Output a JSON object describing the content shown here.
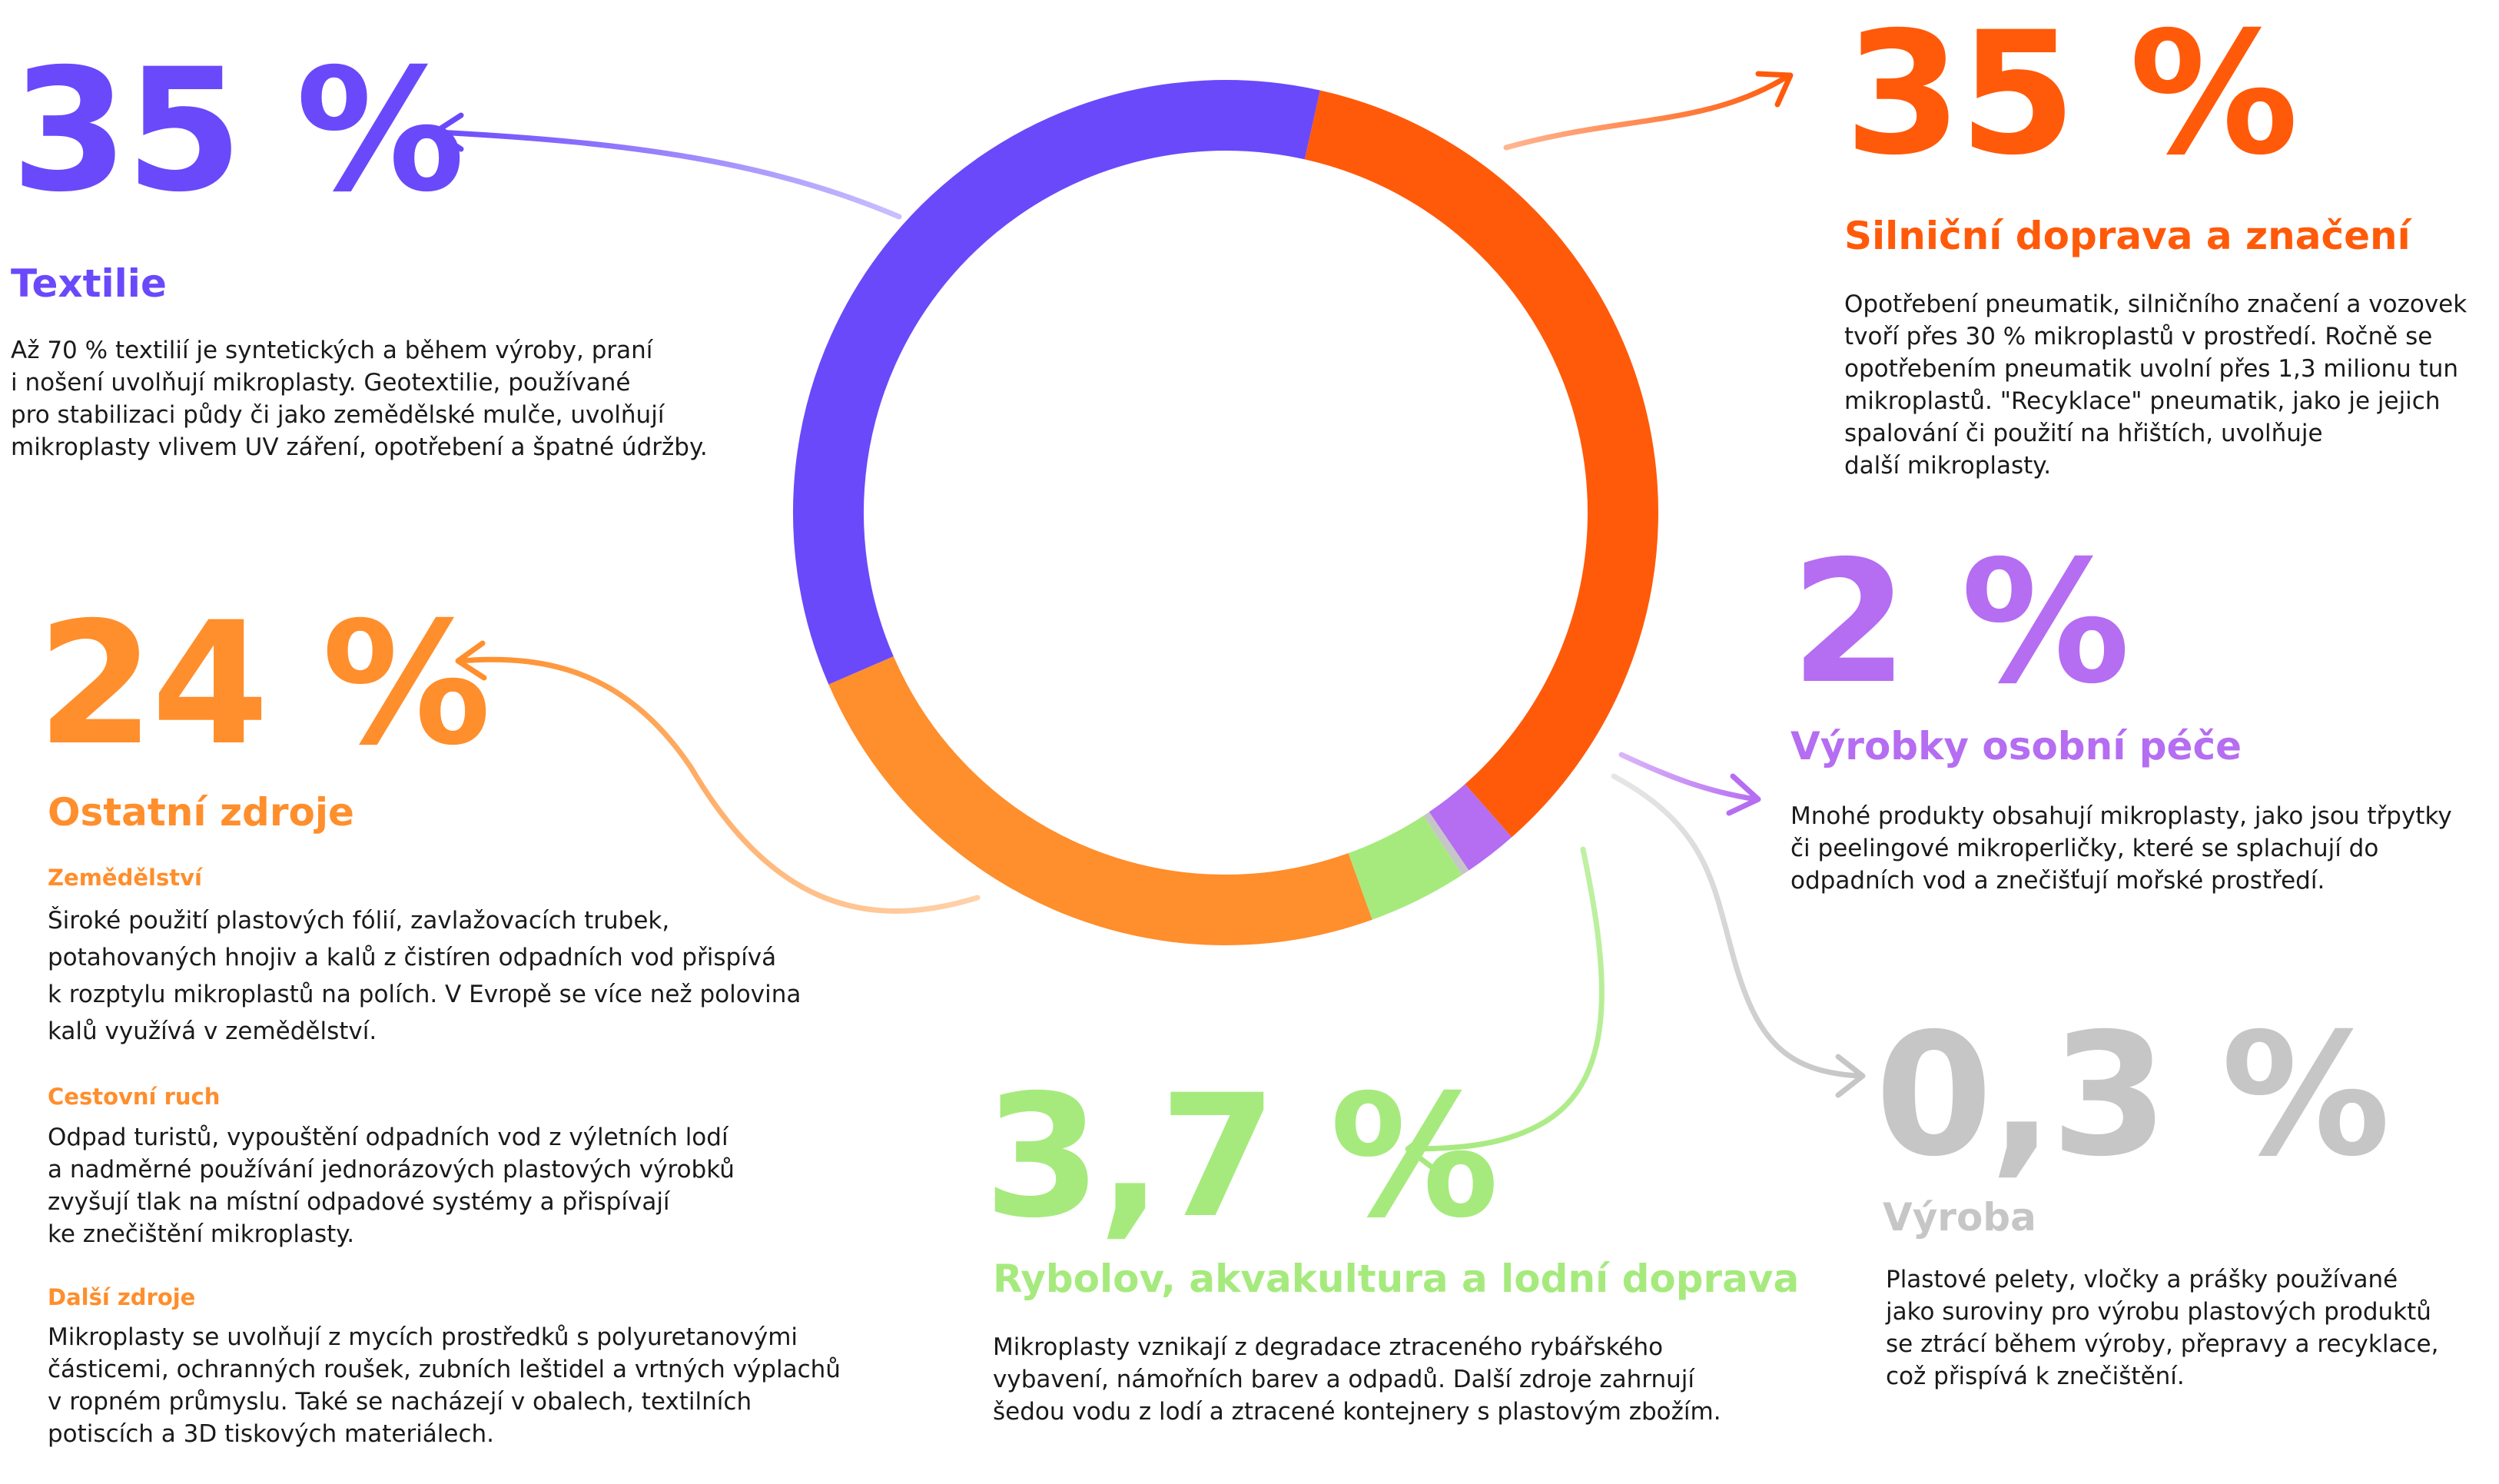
{
  "chart_data": {
    "type": "pie",
    "donut": true,
    "slices": [
      {
        "label": "Silniční doprava a značení",
        "value": 35,
        "display": "35 %",
        "color": "#ff5a0a"
      },
      {
        "label": "Výrobky osobní péče",
        "value": 2,
        "display": "2 %",
        "color": "#b56df2"
      },
      {
        "label": "Výroba",
        "value": 0.3,
        "display": "0,3 %",
        "color": "#c6c6c6"
      },
      {
        "label": "Rybolov, akvakultura a lodní doprava",
        "value": 3.7,
        "display": "3,7 %",
        "color": "#a6ea7e"
      },
      {
        "label": "Ostatní zdroje",
        "value": 24,
        "display": "24 %",
        "color": "#ff8e2c"
      },
      {
        "label": "Textilie",
        "value": 35,
        "display": "35 %",
        "color": "#6a49fb"
      }
    ]
  },
  "textilie": {
    "percent": "35 %",
    "title": "Textilie",
    "text": "Až 70 % textilií je syntetických a během výroby, praní\ni nošení uvolňují mikroplasty. Geotextilie, používané\npro stabilizaci půdy či jako zemědělské mulče, uvolňují\nmikroplasty vlivem UV záření, opotřebení a špatné údržby."
  },
  "silnicni": {
    "percent": "35 %",
    "title": "Silniční doprava a značení",
    "text": "Opotřebení pneumatik, silničního značení a vozovek\ntvoří přes 30 % mikroplastů v prostředí. Ročně se\nopotřebením pneumatik uvolní přes 1,3 milionu tun\nmikroplastů. \"Recyklace\" pneumatik, jako je jejich\nspalování či použití na hřištích, uvolňuje\ndalší mikroplasty."
  },
  "ostatni": {
    "percent": "24 %",
    "title": "Ostatní zdroje",
    "sections": [
      {
        "title": "Zemědělství",
        "text": "Široké použití plastových fólií, zavlažovacích trubek,\npotahovaných hnojiv a kalů z čistíren odpadních vod přispívá\nk rozptylu mikroplastů na polích. V Evropě se více než polovina\nkalů využívá v zemědělství."
      },
      {
        "title": "Cestovní ruch",
        "text": "Odpad turistů, vypouštění odpadních vod z výletních lodí\na nadměrné používání jednorázových plastových výrobků\nzvyšují tlak na místní odpadové systémy a přispívají\nke znečištění mikroplasty."
      },
      {
        "title": "Další zdroje",
        "text": "Mikroplasty se uvolňují z mycích prostředků s polyuretanovými\nčásticemi, ochranných roušek, zubních leštidel a vrtných výplachů\nv ropném průmyslu. Také se nacházejí v obalech, textilních\npotiscích a 3D tiskových materiálech."
      }
    ]
  },
  "pece": {
    "percent": "2 %",
    "title": "Výrobky osobní péče",
    "text": "Mnohé produkty obsahují mikroplasty, jako jsou třpytky\nči peelingové mikroperličky, které se splachují do\nodpadních vod a znečišťují mořské prostředí."
  },
  "vyroba": {
    "percent": "0,3 %",
    "title": "Výroba",
    "text": "Plastové pelety, vločky a prášky používané\njako suroviny pro výrobu plastových produktů\nse ztrácí během výroby, přepravy a recyklace,\ncož přispívá k znečištění."
  },
  "rybolov": {
    "percent": "3,7 %",
    "title": "Rybolov, akvakultura a lodní doprava",
    "text": "Mikroplasty vznikají z degradace ztraceného rybářského\nvybavení, námořních barev a odpadů. Další zdroje zahrnují\nšedou vodu z lodí a ztracené kontejnery s plastovým zbožím."
  },
  "colors": {
    "textilie": "#6a49fb",
    "silnicni": "#ff5a0a",
    "ostatni": "#ff8e2c",
    "pece": "#b56df2",
    "vyroba": "#c6c6c6",
    "rybolov": "#a6ea7e"
  }
}
